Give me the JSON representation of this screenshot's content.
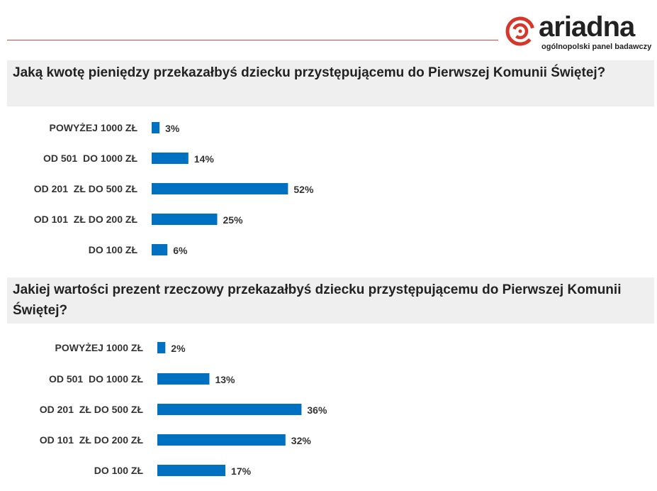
{
  "logo": {
    "word": "ariadna",
    "tagline": "ogólnopolski panel badawczy",
    "color": "#d7362b"
  },
  "bar_color": "#0070c0",
  "chart_data": [
    {
      "type": "bar",
      "orientation": "horizontal",
      "title": "Jaką kwotę pieniędzy przekazałbyś dziecku przystępującemu do Pierwszej Komunii Świętej?",
      "categories": [
        "POWYŻEJ 1000 ZŁ",
        "OD 501  DO 1000 ZŁ",
        "OD 201  ZŁ DO 500 ZŁ",
        "OD 101  ZŁ DO 200 ZŁ",
        "DO 100 ZŁ"
      ],
      "values": [
        3,
        14,
        52,
        25,
        6
      ],
      "labels": [
        "3%",
        "14%",
        "52%",
        "25%",
        "6%"
      ],
      "unit": "%"
    },
    {
      "type": "bar",
      "orientation": "horizontal",
      "title": "Jakiej wartości prezent rzeczowy przekazałbyś dziecku przystępującemu do Pierwszej Komunii Świętej?",
      "categories": [
        "POWYŻEJ 1000 ZŁ",
        "OD 501  DO 1000 ZŁ",
        "OD 201  ZŁ DO 500 ZŁ",
        "OD 101  ZŁ DO 200 ZŁ",
        "DO 100 ZŁ"
      ],
      "values": [
        2,
        13,
        36,
        32,
        17
      ],
      "labels": [
        "2%",
        "13%",
        "36%",
        "32%",
        "17%"
      ],
      "unit": "%"
    }
  ]
}
